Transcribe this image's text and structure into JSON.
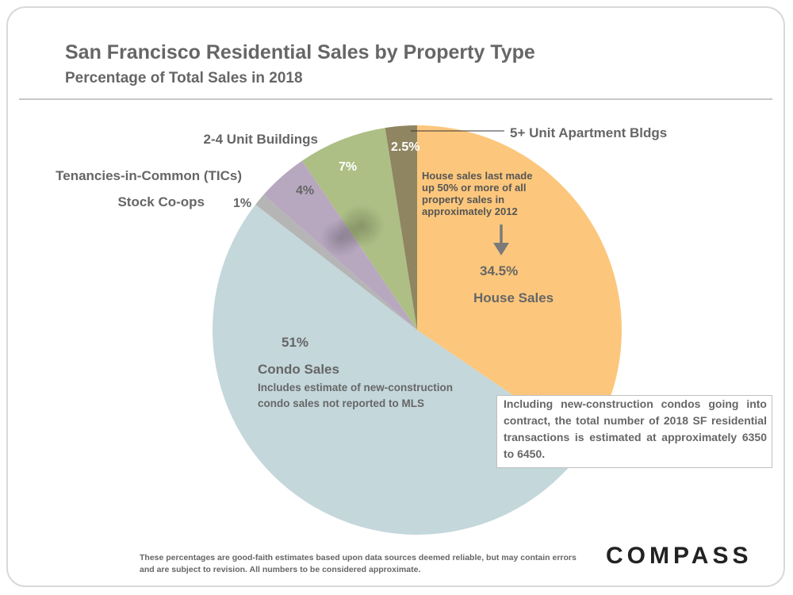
{
  "header": {
    "title": "San Francisco Residential Sales by Property Type",
    "subtitle": "Percentage of Total Sales in 2018"
  },
  "chart_data": {
    "type": "pie",
    "title": "San Francisco Residential Sales by Property Type",
    "subtitle": "Percentage of Total Sales in 2018",
    "slices": [
      {
        "name": "House Sales",
        "value": 34.5,
        "label": "34.5%",
        "color": "#fcc77c"
      },
      {
        "name": "Condo Sales",
        "value": 51,
        "label": "51%",
        "color": "#c4d7db"
      },
      {
        "name": "Stock Co-ops",
        "value": 1,
        "label": "1%",
        "color": "#b5b5b5"
      },
      {
        "name": "Tenancies-in-Common (TICs)",
        "value": 4,
        "label": "4%",
        "color": "#b7a8c0"
      },
      {
        "name": "2-4 Unit Buildings",
        "value": 7,
        "label": "7%",
        "color": "#adbf85"
      },
      {
        "name": "5+ Unit Apartment Bldgs",
        "value": 2.5,
        "label": "2.5%",
        "color": "#8f8561"
      }
    ],
    "annotations": {
      "house_note": "House sales last made up 50% or more of all property sales in approximately 2012",
      "condo_note": "Includes estimate of new-construction condo sales not reported to MLS"
    }
  },
  "note_box": "Including new-construction condos going into contract, the total number of 2018 SF residential transactions is estimated at approximately 6350 to 6450.",
  "footer": {
    "disclaimer": "These percentages are good-faith estimates based upon data sources deemed reliable, but may contain errors and are subject to revision. All numbers to be considered approximate.",
    "logo": "COMPASS"
  }
}
